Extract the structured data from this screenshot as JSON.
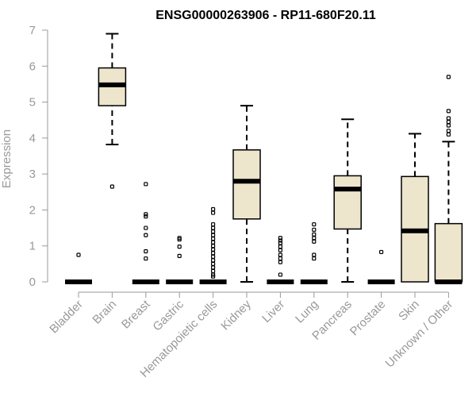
{
  "chart_data": {
    "type": "boxplot",
    "title": "ENSG00000263906 - RP11-680F20.11",
    "ylabel": "Expression",
    "xlabel": "",
    "ylim": [
      0,
      7
    ],
    "yticks": [
      0,
      1,
      2,
      3,
      4,
      5,
      6,
      7
    ],
    "categories": [
      "Bladder",
      "Brain",
      "Breast",
      "Gastric",
      "Hematopoietic cells",
      "Kidney",
      "Liver",
      "Lung",
      "Pancreas",
      "Prostate",
      "Skin",
      "Unknown / Other"
    ],
    "boxes": [
      {
        "category": "Bladder",
        "min": 0,
        "q1": 0,
        "median": 0,
        "q3": 0,
        "max": 0,
        "outliers": [
          0.75
        ]
      },
      {
        "category": "Brain",
        "min": 3.82,
        "q1": 4.9,
        "median": 5.48,
        "q3": 5.95,
        "max": 6.9,
        "outliers": [
          2.65
        ]
      },
      {
        "category": "Breast",
        "min": 0,
        "q1": 0,
        "median": 0,
        "q3": 0,
        "max": 0,
        "outliers": [
          2.72,
          1.88,
          1.82,
          1.5,
          1.3,
          0.85,
          0.65
        ]
      },
      {
        "category": "Gastric",
        "min": 0,
        "q1": 0,
        "median": 0,
        "q3": 0,
        "max": 0,
        "outliers": [
          1.22,
          1.18,
          0.98,
          0.72
        ]
      },
      {
        "category": "Hematopoietic cells",
        "min": 0,
        "q1": 0,
        "median": 0,
        "q3": 0,
        "max": 0,
        "outliers": [
          2.02,
          1.92,
          1.6,
          1.5,
          1.4,
          1.3,
          1.2,
          1.1,
          1.0,
          0.9,
          0.8,
          0.7,
          0.6,
          0.5,
          0.4,
          0.3,
          0.2,
          0.15
        ]
      },
      {
        "category": "Kidney",
        "min": 0,
        "q1": 1.75,
        "median": 2.8,
        "q3": 3.67,
        "max": 4.9,
        "outliers": []
      },
      {
        "category": "Liver",
        "min": 0,
        "q1": 0,
        "median": 0,
        "q3": 0,
        "max": 0,
        "outliers": [
          1.22,
          1.15,
          1.08,
          0.98,
          0.88,
          0.75,
          0.65,
          0.55,
          0.2
        ]
      },
      {
        "category": "Lung",
        "min": 0,
        "q1": 0,
        "median": 0,
        "q3": 0,
        "max": 0,
        "outliers": [
          1.6,
          1.45,
          1.32,
          1.22,
          1.12,
          0.75,
          0.65
        ]
      },
      {
        "category": "Pancreas",
        "min": 0,
        "q1": 1.47,
        "median": 2.58,
        "q3": 2.95,
        "max": 4.52,
        "outliers": []
      },
      {
        "category": "Prostate",
        "min": 0,
        "q1": 0,
        "median": 0,
        "q3": 0,
        "max": 0,
        "outliers": [
          0.83
        ]
      },
      {
        "category": "Skin",
        "min": 0,
        "q1": 0,
        "median": 1.42,
        "q3": 2.93,
        "max": 4.12,
        "outliers": []
      },
      {
        "category": "Unknown / Other",
        "min": 0,
        "q1": 0,
        "median": 0,
        "q3": 1.62,
        "max": 3.9,
        "outliers": [
          5.7,
          4.75,
          4.55,
          4.45,
          4.35,
          4.2,
          4.1
        ]
      }
    ],
    "box_fill": "#ede5cc",
    "axis_color": "#999999",
    "grid": false,
    "legend": false
  }
}
